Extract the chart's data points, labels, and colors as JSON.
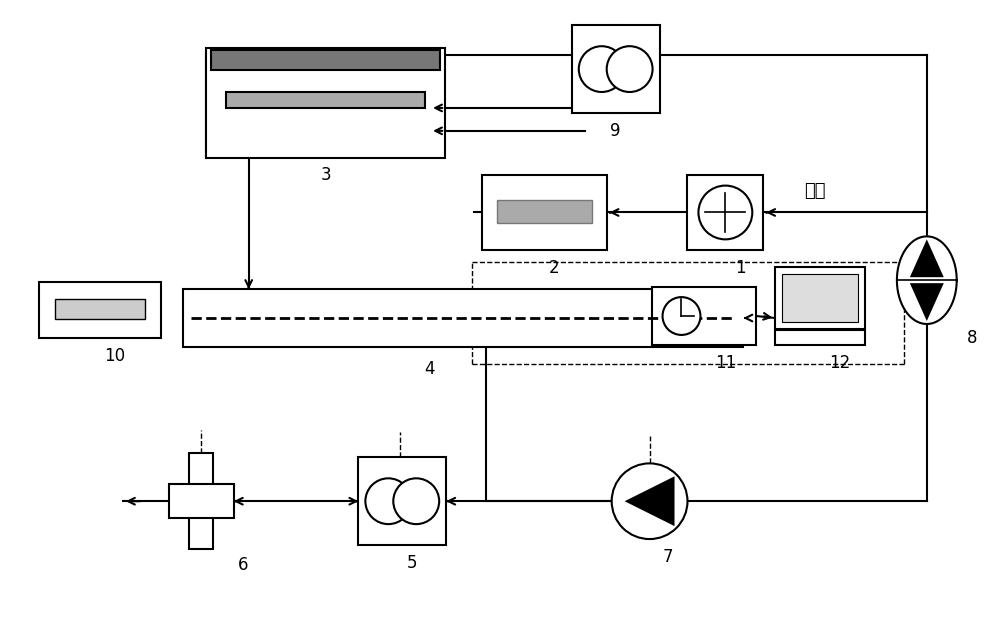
{
  "bg": "#ffffff",
  "lc": "#000000",
  "gray1": "#777777",
  "gray2": "#aaaaaa",
  "gray3": "#cccccc",
  "lw": 1.5
}
